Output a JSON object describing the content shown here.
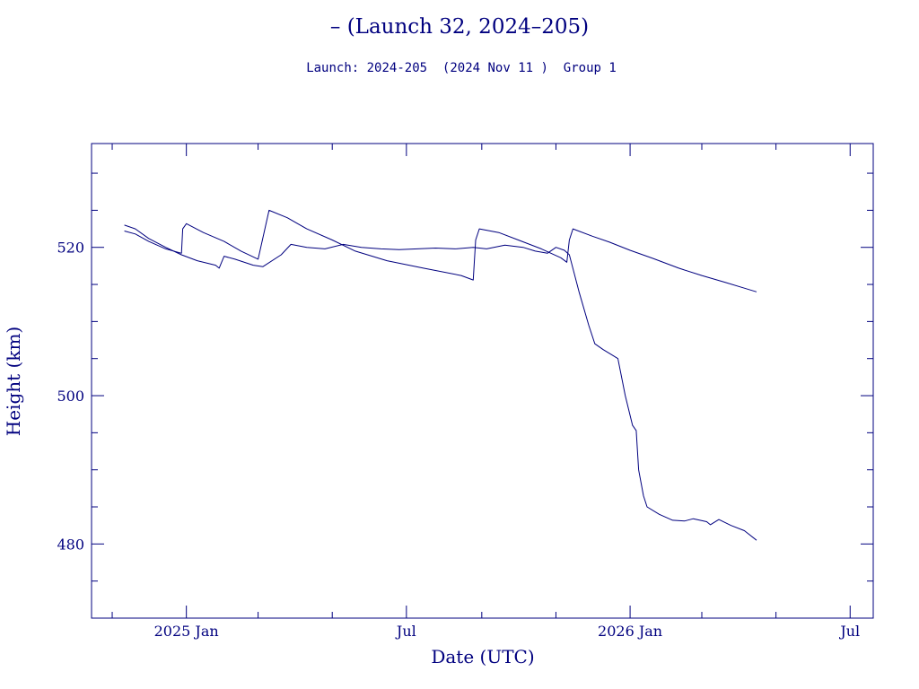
{
  "colors": {
    "ink": "#00007f",
    "background": "#ffffff"
  },
  "chart_data": {
    "type": "line",
    "title": "– (Launch 32, 2024–205)",
    "subtitle": "Launch: 2024-205  (2024 Nov 11 )  Group 1",
    "xlabel": "Date (UTC)",
    "ylabel": "Height (km)",
    "x_range": [
      "2024-10-15",
      "2026-07-20"
    ],
    "ylim": [
      470,
      534
    ],
    "x_ticks": [
      {
        "date": "2025-01-01",
        "label": "2025 Jan"
      },
      {
        "date": "2025-07-01",
        "label": "Jul"
      },
      {
        "date": "2026-01-01",
        "label": "2026 Jan"
      },
      {
        "date": "2026-07-01",
        "label": "Jul"
      }
    ],
    "x_minor_ticks": [
      "2024-11-01",
      "2025-03-01",
      "2025-05-01",
      "2025-09-01",
      "2025-11-01",
      "2026-03-01",
      "2026-05-01"
    ],
    "y_ticks": [
      480,
      500,
      520
    ],
    "y_minor_ticks": [
      475,
      485,
      490,
      495,
      505,
      510,
      515,
      525,
      530
    ],
    "grid": false,
    "legend": "none",
    "series": [
      {
        "points": [
          [
            "2024-11-11",
            522.2
          ],
          [
            "2024-11-20",
            521.8
          ],
          [
            "2024-12-01",
            520.8
          ],
          [
            "2024-12-15",
            519.8
          ],
          [
            "2024-12-28",
            519.2
          ],
          [
            "2024-12-29",
            522.5
          ],
          [
            "2025-01-01",
            523.2
          ],
          [
            "2025-01-15",
            522.0
          ],
          [
            "2025-02-01",
            520.8
          ],
          [
            "2025-02-15",
            519.5
          ],
          [
            "2025-03-01",
            518.4
          ],
          [
            "2025-03-10",
            525.0
          ],
          [
            "2025-03-25",
            524.0
          ],
          [
            "2025-04-10",
            522.5
          ],
          [
            "2025-05-01",
            521.0
          ],
          [
            "2025-05-20",
            519.5
          ],
          [
            "2025-06-15",
            518.2
          ],
          [
            "2025-07-15",
            517.2
          ],
          [
            "2025-08-15",
            516.2
          ],
          [
            "2025-08-25",
            515.6
          ],
          [
            "2025-08-27",
            521.0
          ],
          [
            "2025-08-30",
            522.5
          ],
          [
            "2025-09-15",
            522.0
          ],
          [
            "2025-10-01",
            521.0
          ],
          [
            "2025-10-20",
            519.8
          ],
          [
            "2025-11-05",
            518.6
          ],
          [
            "2025-11-10",
            518.0
          ],
          [
            "2025-11-12",
            521.0
          ],
          [
            "2025-11-15",
            522.5
          ],
          [
            "2025-12-01",
            521.5
          ],
          [
            "2025-12-15",
            520.7
          ],
          [
            "2026-01-01",
            519.6
          ],
          [
            "2026-01-20",
            518.5
          ],
          [
            "2026-02-10",
            517.2
          ],
          [
            "2026-03-01",
            516.2
          ],
          [
            "2026-03-20",
            515.3
          ],
          [
            "2026-04-05",
            514.5
          ],
          [
            "2026-04-15",
            514.0
          ]
        ]
      },
      {
        "points": [
          [
            "2024-11-11",
            523.0
          ],
          [
            "2024-11-20",
            522.5
          ],
          [
            "2024-12-01",
            521.2
          ],
          [
            "2024-12-15",
            520.0
          ],
          [
            "2024-12-28",
            519.0
          ],
          [
            "2025-01-10",
            518.2
          ],
          [
            "2025-01-25",
            517.6
          ],
          [
            "2025-01-28",
            517.2
          ],
          [
            "2025-02-01",
            518.8
          ],
          [
            "2025-02-10",
            518.4
          ],
          [
            "2025-02-25",
            517.6
          ],
          [
            "2025-03-05",
            517.4
          ],
          [
            "2025-03-20",
            519.0
          ],
          [
            "2025-03-28",
            520.4
          ],
          [
            "2025-04-10",
            520.0
          ],
          [
            "2025-04-25",
            519.8
          ],
          [
            "2025-05-10",
            520.4
          ],
          [
            "2025-05-25",
            520.0
          ],
          [
            "2025-06-10",
            519.8
          ],
          [
            "2025-06-25",
            519.7
          ],
          [
            "2025-07-10",
            519.8
          ],
          [
            "2025-07-25",
            519.9
          ],
          [
            "2025-08-10",
            519.8
          ],
          [
            "2025-08-25",
            520.0
          ],
          [
            "2025-09-05",
            519.8
          ],
          [
            "2025-09-20",
            520.3
          ],
          [
            "2025-10-05",
            520.0
          ],
          [
            "2025-10-15",
            519.5
          ],
          [
            "2025-10-25",
            519.2
          ],
          [
            "2025-11-01",
            520.0
          ],
          [
            "2025-11-08",
            519.6
          ],
          [
            "2025-11-12",
            519.0
          ],
          [
            "2025-11-20",
            514.0
          ],
          [
            "2025-11-28",
            509.5
          ],
          [
            "2025-12-03",
            507.0
          ],
          [
            "2025-12-10",
            506.2
          ],
          [
            "2025-12-17",
            505.5
          ],
          [
            "2025-12-22",
            505.0
          ],
          [
            "2025-12-28",
            500.0
          ],
          [
            "2026-01-03",
            496.0
          ],
          [
            "2026-01-06",
            495.3
          ],
          [
            "2026-01-08",
            490.0
          ],
          [
            "2026-01-12",
            486.5
          ],
          [
            "2026-01-15",
            485.0
          ],
          [
            "2026-01-25",
            484.0
          ],
          [
            "2026-02-05",
            483.2
          ],
          [
            "2026-02-15",
            483.1
          ],
          [
            "2026-02-22",
            483.4
          ],
          [
            "2026-03-05",
            483.0
          ],
          [
            "2026-03-08",
            482.6
          ],
          [
            "2026-03-15",
            483.3
          ],
          [
            "2026-03-25",
            482.5
          ],
          [
            "2026-04-05",
            481.8
          ],
          [
            "2026-04-15",
            480.5
          ]
        ]
      }
    ]
  }
}
